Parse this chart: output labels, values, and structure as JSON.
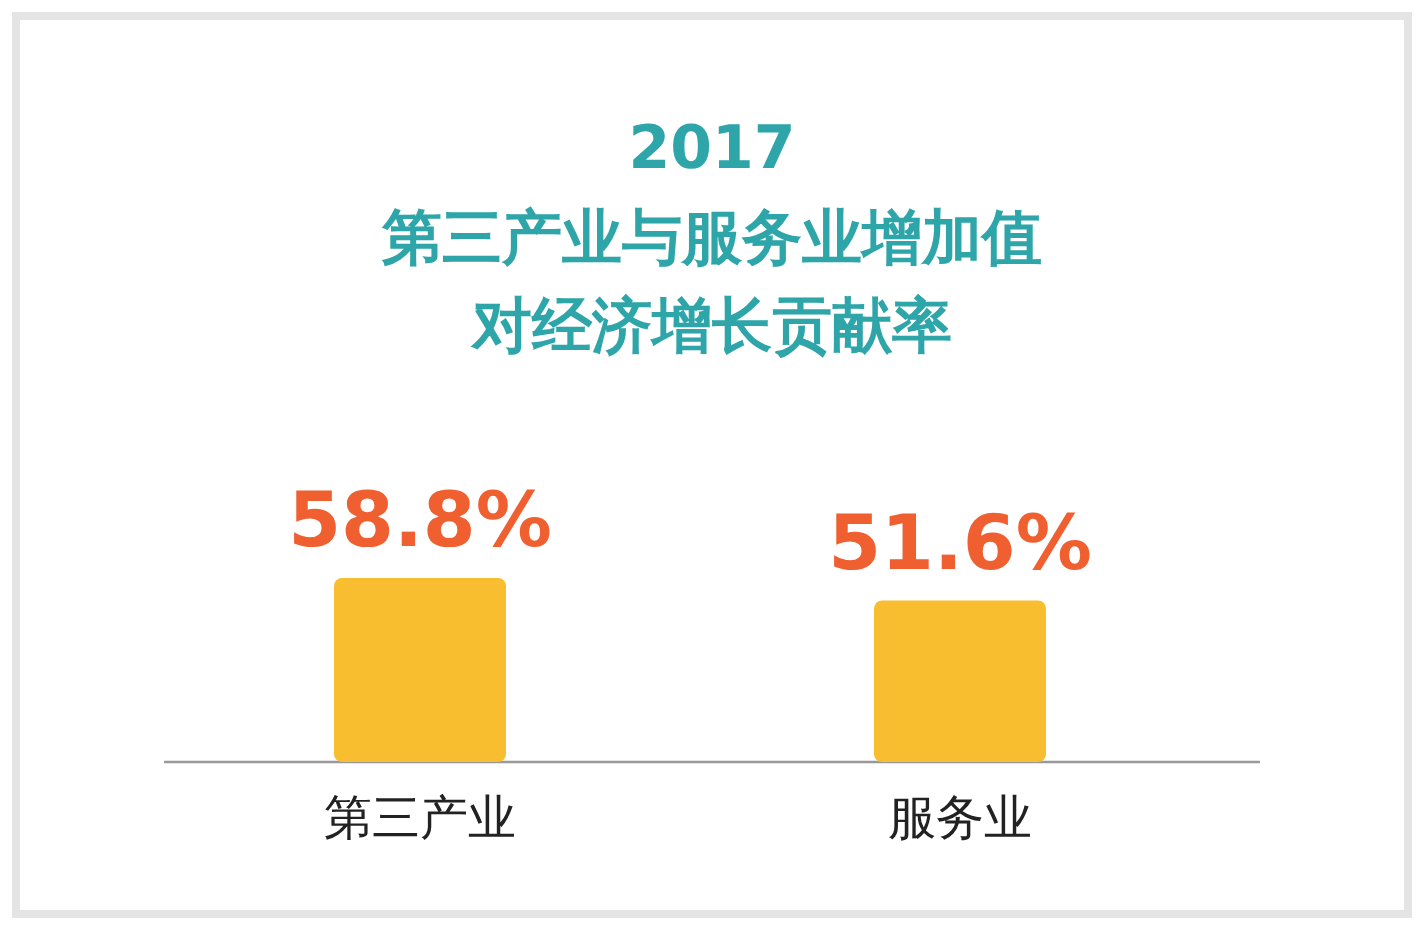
{
  "chart_data": {
    "type": "bar",
    "title": "2017",
    "subtitle": "第三产业与服务业增加值对经济增长贡献率",
    "categories": [
      "第三产业",
      "服务业"
    ],
    "values": [
      58.8,
      51.6
    ],
    "color": "#f9be2f",
    "value_labels": [
      "58.8%",
      "51.6%"
    ]
  }
}
